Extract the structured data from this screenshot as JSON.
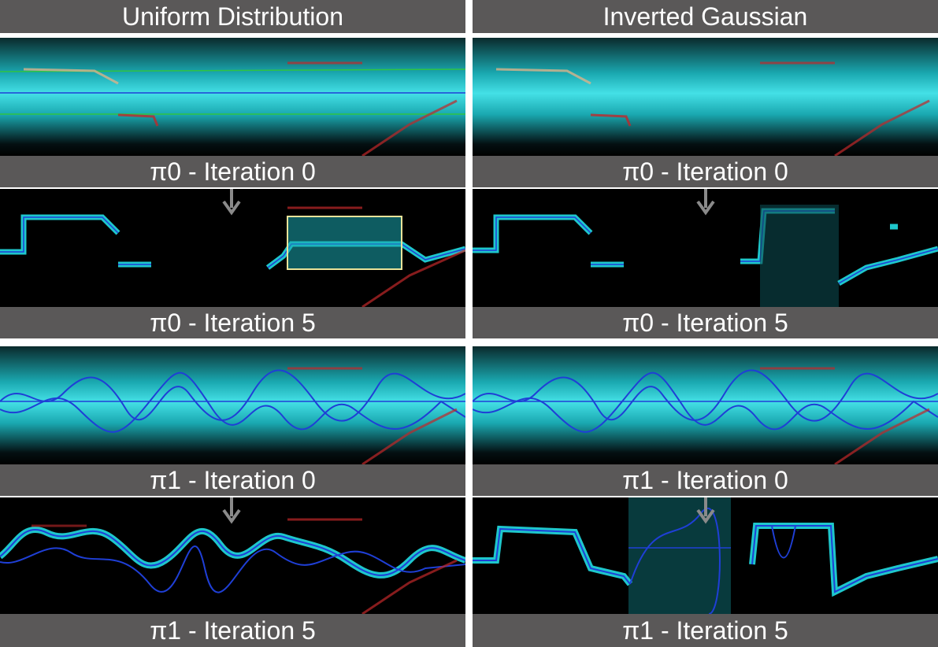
{
  "columns": [
    {
      "title": "Uniform Distribution",
      "labels": [
        "π0 - Iteration 0",
        "π0 - Iteration 5",
        "π1 - Iteration 0",
        "π1 - Iteration 5"
      ]
    },
    {
      "title": "Inverted Gaussian",
      "labels": [
        "π0 - Iteration 0",
        "π0 - Iteration 5",
        "π1 - Iteration 0",
        "π1 - Iteration 5"
      ]
    }
  ],
  "colors": {
    "label_bar": "#5a5858",
    "divider": "#ffffff",
    "teal_band": "#16b8c0",
    "blue_trace": "#1f3fd6",
    "red_track": "#c0282a",
    "green_edge": "#2fc443",
    "highlight_box": "#e9e39a",
    "arrow": "#8a8a8a"
  },
  "icons": {
    "down_arrow": "down-arrow-icon"
  }
}
